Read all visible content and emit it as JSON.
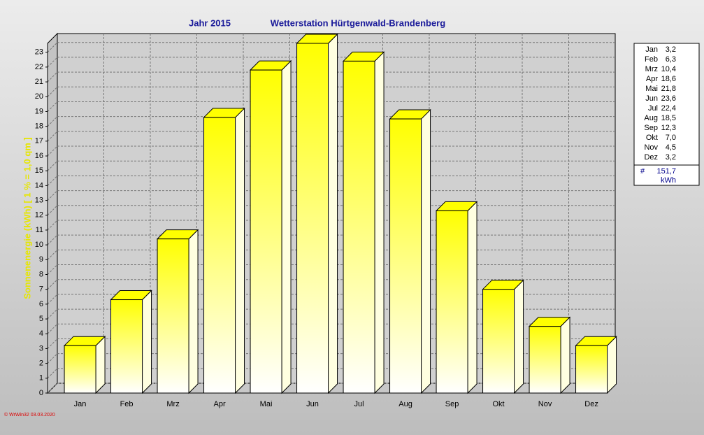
{
  "chart_data": {
    "type": "bar3d",
    "title": "Jahr  2015",
    "subtitle": "Wetterstation Hürtgenwald-Brandenberg",
    "y_label": "Sonnenenergie (kWh)  [ 1 % = 1,0 qm ]",
    "categories": [
      "Jan",
      "Feb",
      "Mrz",
      "Apr",
      "Mai",
      "Jun",
      "Jul",
      "Aug",
      "Sep",
      "Okt",
      "Nov",
      "Dez"
    ],
    "values": [
      3.2,
      6.3,
      10.4,
      18.6,
      21.8,
      23.6,
      22.4,
      18.5,
      12.3,
      7.0,
      4.5,
      3.2
    ],
    "value_labels": [
      "3,2",
      "6,3",
      "10,4",
      "18,6",
      "21,8",
      "23,6",
      "22,4",
      "18,5",
      "12,3",
      "7,0",
      "4,5",
      "3,2"
    ],
    "color": "#ffff00",
    "ylim": [
      0,
      23.6
    ],
    "yticks": [
      0,
      1,
      2,
      3,
      4,
      5,
      6,
      7,
      8,
      9,
      10,
      11,
      12,
      13,
      14,
      15,
      16,
      17,
      18,
      19,
      20,
      21,
      22,
      23
    ],
    "grid": true,
    "legend_total": {
      "symbol": "#",
      "value": "151,7",
      "unit": "kWh"
    },
    "footer": "© WrWin32  03.03.2020"
  }
}
